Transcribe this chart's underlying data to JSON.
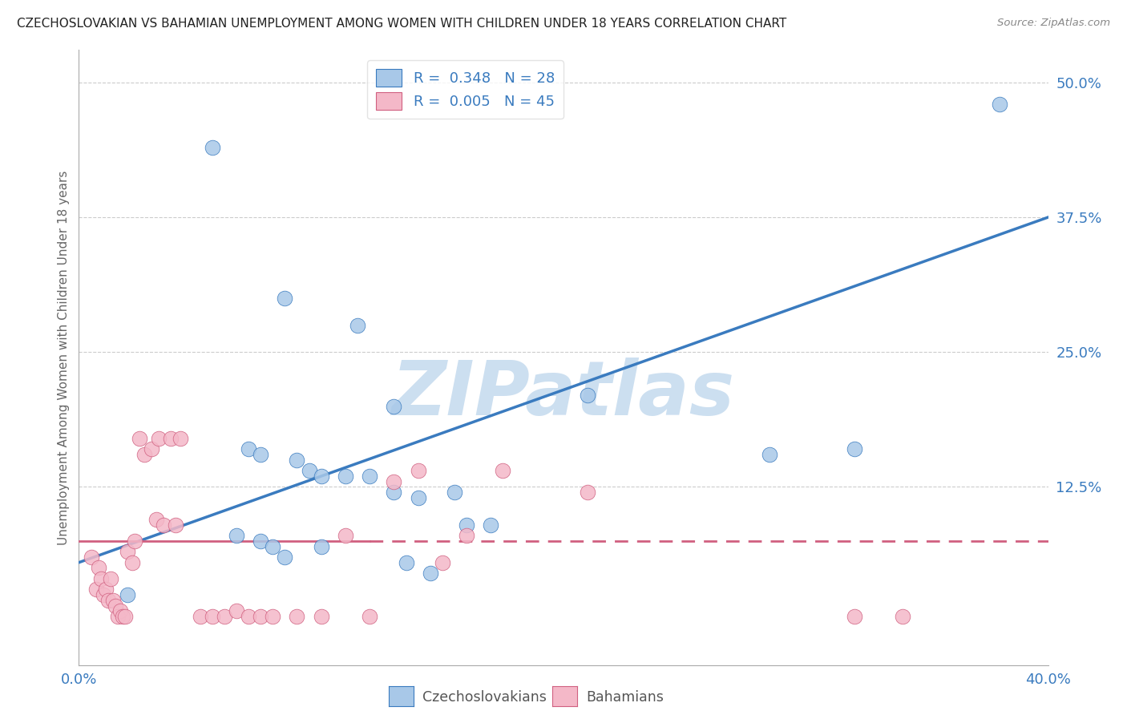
{
  "title": "CZECHOSLOVAKIAN VS BAHAMIAN UNEMPLOYMENT AMONG WOMEN WITH CHILDREN UNDER 18 YEARS CORRELATION CHART",
  "source": "Source: ZipAtlas.com",
  "xlabel_blue": "Czechoslovakians",
  "xlabel_pink": "Bahamians",
  "ylabel": "Unemployment Among Women with Children Under 18 years",
  "xlim": [
    0.0,
    0.4
  ],
  "ylim": [
    -0.04,
    0.53
  ],
  "R_blue": 0.348,
  "N_blue": 28,
  "R_pink": 0.005,
  "N_pink": 45,
  "blue_color": "#a8c8e8",
  "pink_color": "#f4b8c8",
  "blue_line_color": "#3a7bbf",
  "pink_line_color": "#d06080",
  "watermark": "ZIPatlas",
  "watermark_color": "#ccdff0",
  "blue_line_x0": 0.0,
  "blue_line_y0": 0.055,
  "blue_line_x1": 0.4,
  "blue_line_y1": 0.375,
  "pink_line_y": 0.075,
  "blue_scatter_x": [
    0.055,
    0.085,
    0.115,
    0.13,
    0.07,
    0.075,
    0.09,
    0.095,
    0.1,
    0.11,
    0.12,
    0.13,
    0.14,
    0.155,
    0.16,
    0.17,
    0.02,
    0.21,
    0.285,
    0.32,
    0.38,
    0.065,
    0.075,
    0.08,
    0.085,
    0.1,
    0.135,
    0.145
  ],
  "blue_scatter_y": [
    0.44,
    0.3,
    0.275,
    0.2,
    0.16,
    0.155,
    0.15,
    0.14,
    0.135,
    0.135,
    0.135,
    0.12,
    0.115,
    0.12,
    0.09,
    0.09,
    0.025,
    0.21,
    0.155,
    0.16,
    0.48,
    0.08,
    0.075,
    0.07,
    0.06,
    0.07,
    0.055,
    0.045
  ],
  "pink_scatter_x": [
    0.005,
    0.007,
    0.008,
    0.009,
    0.01,
    0.011,
    0.012,
    0.013,
    0.014,
    0.015,
    0.016,
    0.017,
    0.018,
    0.019,
    0.02,
    0.022,
    0.023,
    0.025,
    0.027,
    0.03,
    0.032,
    0.033,
    0.035,
    0.038,
    0.04,
    0.042,
    0.05,
    0.055,
    0.06,
    0.065,
    0.07,
    0.075,
    0.08,
    0.09,
    0.1,
    0.11,
    0.12,
    0.13,
    0.14,
    0.15,
    0.16,
    0.175,
    0.21,
    0.32,
    0.34
  ],
  "pink_scatter_y": [
    0.06,
    0.03,
    0.05,
    0.04,
    0.025,
    0.03,
    0.02,
    0.04,
    0.02,
    0.015,
    0.005,
    0.01,
    0.005,
    0.005,
    0.065,
    0.055,
    0.075,
    0.17,
    0.155,
    0.16,
    0.095,
    0.17,
    0.09,
    0.17,
    0.09,
    0.17,
    0.005,
    0.005,
    0.005,
    0.01,
    0.005,
    0.005,
    0.005,
    0.005,
    0.005,
    0.08,
    0.005,
    0.13,
    0.14,
    0.055,
    0.08,
    0.14,
    0.12,
    0.005,
    0.005
  ]
}
